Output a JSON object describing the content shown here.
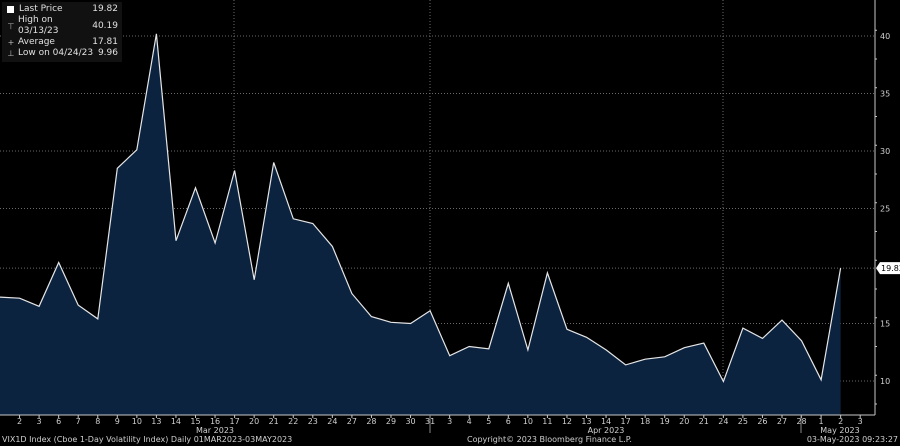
{
  "legend": {
    "last_price_label": "Last Price",
    "last_price_value": "19.82",
    "high_label": "High on 03/13/23",
    "high_value": "40.19",
    "average_label": "Average",
    "average_value": "17.81",
    "low_label": "Low on 04/24/23",
    "low_value": "9.96"
  },
  "footer": {
    "security": "VIX1D Index (Cboe 1-Day Volatility Index)  Daily 01MAR2023-03MAY2023",
    "copyright": "Copyright© 2023 Bloomberg Finance L.P.",
    "timestamp": "03-May-2023 09:23:27"
  },
  "last_price_tag": "19.82",
  "colors": {
    "fill": "#0c2340",
    "line": "#e6e6e6",
    "grid": "#6a6a6a",
    "background": "#000000"
  },
  "chart_data": {
    "type": "area",
    "title": "VIX1D Index (Cboe 1-Day Volatility Index)",
    "xlabel": "",
    "ylabel": "",
    "ylim": [
      7,
      42
    ],
    "yticks": [
      10,
      15,
      20,
      25,
      30,
      35,
      40
    ],
    "grid": true,
    "legend_position": "top-left",
    "x": [
      "03/01",
      "03/02",
      "03/03",
      "03/06",
      "03/07",
      "03/08",
      "03/09",
      "03/10",
      "03/13",
      "03/14",
      "03/15",
      "03/16",
      "03/17",
      "03/20",
      "03/21",
      "03/22",
      "03/23",
      "03/24",
      "03/27",
      "03/28",
      "03/29",
      "03/30",
      "03/31",
      "04/03",
      "04/04",
      "04/05",
      "04/06",
      "04/10",
      "04/11",
      "04/12",
      "04/13",
      "04/14",
      "04/17",
      "04/18",
      "04/19",
      "04/20",
      "04/21",
      "04/24",
      "04/25",
      "04/26",
      "04/27",
      "04/28",
      "05/01",
      "05/02"
    ],
    "tick_labels": [
      "2",
      "3",
      "6",
      "7",
      "8",
      "9",
      "10",
      "13",
      "14",
      "15",
      "16",
      "17",
      "20",
      "21",
      "22",
      "23",
      "24",
      "27",
      "28",
      "29",
      "30",
      "31",
      "3",
      "4",
      "5",
      "6",
      "10",
      "11",
      "12",
      "13",
      "14",
      "17",
      "18",
      "19",
      "20",
      "21",
      "24",
      "25",
      "26",
      "27",
      "28",
      "1",
      "2",
      "3"
    ],
    "month_labels": [
      "Mar 2023",
      "Apr 2023",
      "May 2023"
    ],
    "series": [
      {
        "name": "Last Price",
        "values": [
          17.3,
          17.2,
          16.5,
          20.3,
          16.6,
          15.4,
          28.5,
          30.1,
          40.19,
          22.2,
          26.8,
          22.0,
          28.3,
          18.8,
          29.0,
          24.1,
          23.7,
          21.7,
          17.6,
          15.6,
          15.1,
          15.0,
          16.1,
          12.2,
          13.0,
          12.8,
          18.5,
          12.7,
          19.4,
          14.5,
          13.8,
          12.7,
          11.4,
          11.9,
          12.1,
          12.9,
          13.3,
          9.96,
          14.6,
          13.7,
          15.3,
          13.5,
          10.1,
          19.82
        ]
      }
    ],
    "stats": {
      "last": 19.82,
      "high": 40.19,
      "high_date": "03/13/23",
      "average": 17.81,
      "low": 9.96,
      "low_date": "04/24/23"
    }
  }
}
